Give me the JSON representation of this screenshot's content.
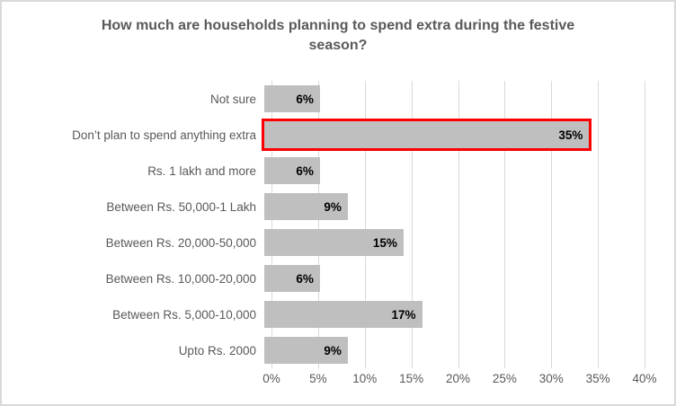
{
  "chart_data": {
    "type": "bar",
    "orientation": "horizontal",
    "title": "How much are households planning to spend extra during the festive season?",
    "categories": [
      "Not sure",
      "Don’t plan to spend anything extra",
      "Rs. 1 lakh and more",
      "Between Rs. 50,000-1 Lakh",
      "Between Rs. 20,000-50,000",
      "Between Rs. 10,000-20,000",
      "Between Rs. 5,000-10,000",
      "Upto Rs. 2000"
    ],
    "values": [
      6,
      35,
      6,
      9,
      15,
      6,
      17,
      9
    ],
    "value_labels": [
      "6%",
      "35%",
      "6%",
      "9%",
      "15%",
      "6%",
      "17%",
      "9%"
    ],
    "highlighted_index": 1,
    "highlighted_category": "Don’t plan to spend anything extra",
    "x_ticks": [
      "0%",
      "5%",
      "10%",
      "15%",
      "20%",
      "25%",
      "30%",
      "35%",
      "40%"
    ],
    "xlim": [
      0,
      40
    ],
    "grid": true,
    "legend": false,
    "colors": {
      "bar_fill": "#BFBFBF",
      "highlight_border": "#FE0000",
      "text": "#595959",
      "value_label": "#000000",
      "gridline": "#D9D9D9",
      "chart_border": "#D9D9D9",
      "background": "#FFFFFF"
    }
  }
}
